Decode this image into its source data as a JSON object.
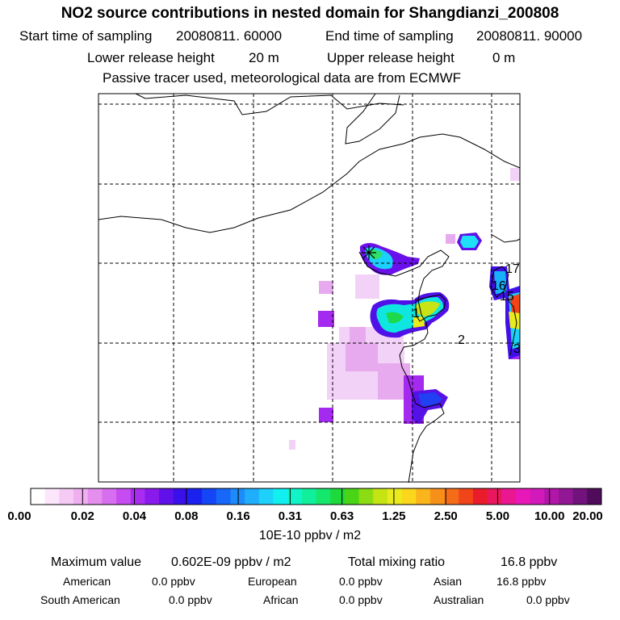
{
  "title": "NO2 source contributions in nested domain for Shangdianzi_200808",
  "sampling": {
    "start_label": "Start time of sampling",
    "start_value": "20080811. 60000",
    "end_label": "End time of sampling",
    "end_value": "20080811. 90000"
  },
  "release": {
    "lower_label": "Lower release height",
    "lower_value": "20 m",
    "upper_label": "Upper release height",
    "upper_value": "0 m"
  },
  "note": "Passive tracer used, meteorological data are from ECMWF",
  "map": {
    "site_marker": "star-marker",
    "labels": [
      "1",
      "2",
      "15",
      "16",
      "17",
      "3"
    ]
  },
  "colorbar": {
    "ticks": [
      "0.00",
      "0.02",
      "0.04",
      "0.08",
      "0.16",
      "0.31",
      "0.63",
      "1.25",
      "2.50",
      "5.00",
      "10.00",
      "20.00"
    ],
    "colors": [
      "#ffffff",
      "#fbe6fb",
      "#f5cbf6",
      "#efaff1",
      "#e48eee",
      "#d76ef0",
      "#c64cf2",
      "#a92cf0",
      "#8a1aeb",
      "#6010e8",
      "#3a10ea",
      "#1b22f0",
      "#1446f6",
      "#1767f9",
      "#1d8bfa",
      "#1faefb",
      "#1dd1fa",
      "#10f0f0",
      "#10f4c8",
      "#10ef9c",
      "#14e76c",
      "#1ed93e",
      "#49d416",
      "#8cdc14",
      "#c4e414",
      "#eaeb1c",
      "#fbd61c",
      "#fab41c",
      "#f79019",
      "#f46c18",
      "#f14418",
      "#ea1c2c",
      "#e9175d",
      "#ea1790",
      "#e818b8",
      "#d21aba",
      "#b216a8",
      "#921794",
      "#72127c",
      "#4e0c5a"
    ],
    "unit": "10E-10 ppbv / m2"
  },
  "stats": {
    "max_label": "Maximum value",
    "max_value": "0.602E-09 ppbv / m2",
    "total_label": "Total mixing ratio",
    "total_value": "16.8 ppbv"
  },
  "continents": [
    {
      "name": "American",
      "value": "0.0 ppbv"
    },
    {
      "name": "European",
      "value": "0.0 ppbv"
    },
    {
      "name": "Asian",
      "value": "16.8 ppbv"
    },
    {
      "name": "South American",
      "value": "0.0 ppbv"
    },
    {
      "name": "African",
      "value": "0.0 ppbv"
    },
    {
      "name": "Australian",
      "value": "0.0 ppbv"
    }
  ]
}
